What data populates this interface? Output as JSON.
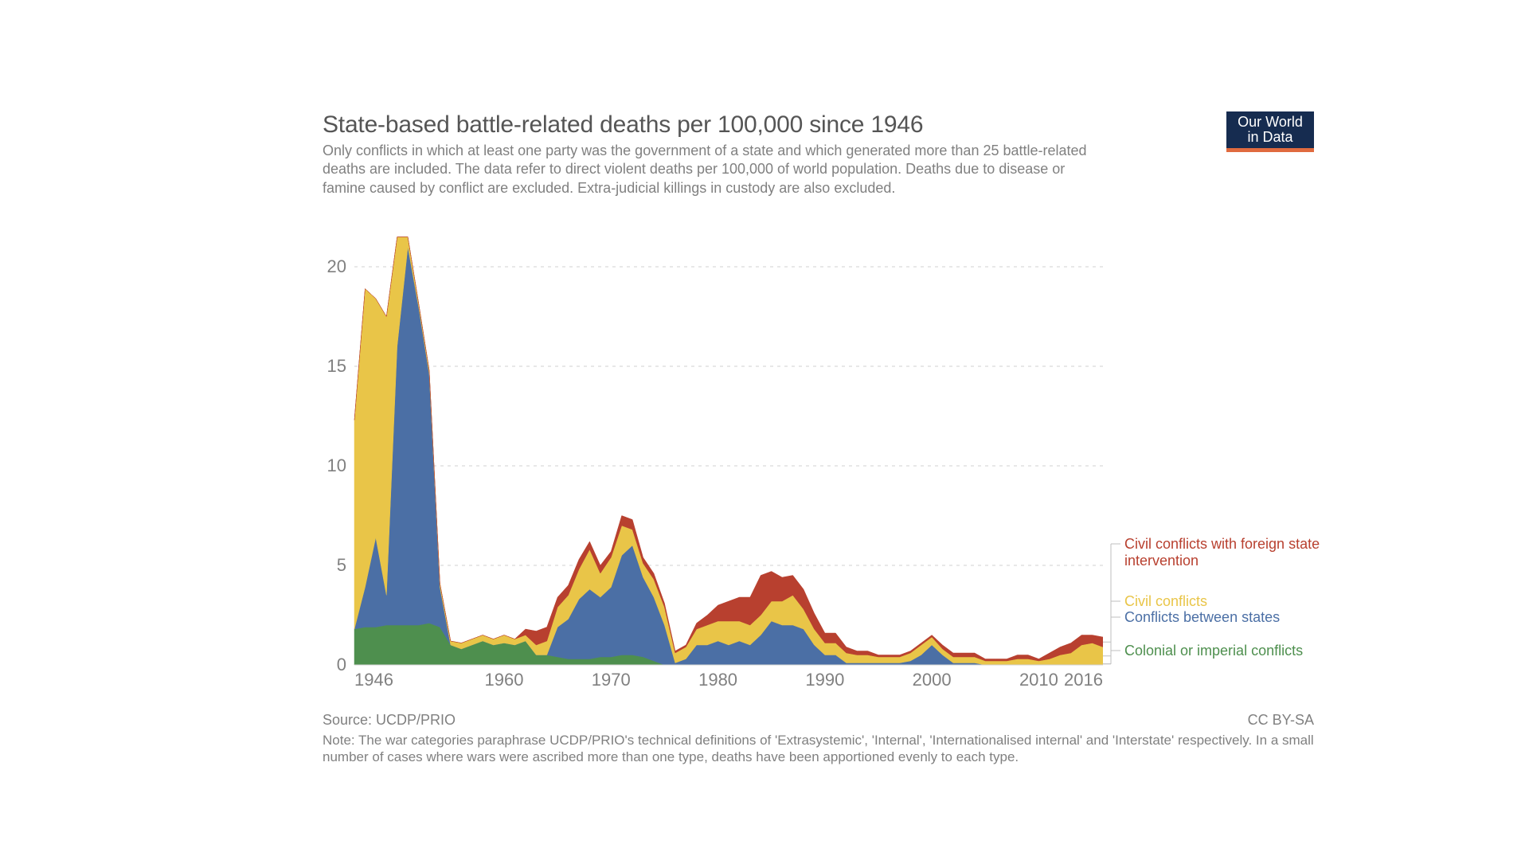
{
  "header": {
    "title": "State-based battle-related deaths per 100,000 since 1946",
    "subtitle": "Only conflicts in which at least one party was the government of a state and which generated more than 25 battle-related deaths are included. The data refer to direct violent deaths per 100,000 of world population. Deaths due to disease or famine caused by conflict are excluded. Extra-judicial killings in custody are also excluded."
  },
  "logo": {
    "line1": "Our World",
    "line2": "in Data"
  },
  "footer": {
    "source": "Source: UCDP/PRIO",
    "license": "CC BY-SA",
    "note": "Note: The war categories paraphrase UCDP/PRIO's technical definitions of 'Extrasystemic', 'Internal', 'Internationalised internal' and 'Interstate' respectively. In a small number of cases where wars were ascribed more than one type, deaths have been apportioned evenly to each type."
  },
  "chart": {
    "type": "stacked-area",
    "background_color": "#ffffff",
    "grid_color": "#d0d0d0",
    "axis_label_color": "#808080",
    "axis_fontsize": 22,
    "xlim": [
      1946,
      2016
    ],
    "ylim": [
      0,
      22
    ],
    "yticks": [
      0,
      5,
      10,
      15,
      20
    ],
    "xticks": [
      1946,
      1960,
      1970,
      1980,
      1990,
      2000,
      2010,
      2016
    ],
    "years": [
      1946,
      1947,
      1948,
      1949,
      1950,
      1951,
      1952,
      1953,
      1954,
      1955,
      1956,
      1957,
      1958,
      1959,
      1960,
      1961,
      1962,
      1963,
      1964,
      1965,
      1966,
      1967,
      1968,
      1969,
      1970,
      1971,
      1972,
      1973,
      1974,
      1975,
      1976,
      1977,
      1978,
      1979,
      1980,
      1981,
      1982,
      1983,
      1984,
      1985,
      1986,
      1987,
      1988,
      1989,
      1990,
      1991,
      1992,
      1993,
      1994,
      1995,
      1996,
      1997,
      1998,
      1999,
      2000,
      2001,
      2002,
      2003,
      2004,
      2005,
      2006,
      2007,
      2008,
      2009,
      2010,
      2011,
      2012,
      2013,
      2014,
      2015,
      2016
    ],
    "series": [
      {
        "key": "colonial",
        "label": "Colonial or imperial conflicts",
        "color": "#4e8f4e",
        "values": [
          1.8,
          1.9,
          1.9,
          2.0,
          2.0,
          2.0,
          2.0,
          2.1,
          1.9,
          1.0,
          0.8,
          1.0,
          1.2,
          1.0,
          1.1,
          1.0,
          1.2,
          0.5,
          0.5,
          0.4,
          0.3,
          0.3,
          0.3,
          0.4,
          0.4,
          0.5,
          0.5,
          0.4,
          0.2,
          0.0,
          0.0,
          0.0,
          0.0,
          0.0,
          0.0,
          0.0,
          0.0,
          0.0,
          0.0,
          0.0,
          0.0,
          0.0,
          0.0,
          0.0,
          0.0,
          0.0,
          0.0,
          0.0,
          0.0,
          0.0,
          0.0,
          0.0,
          0.0,
          0.0,
          0.0,
          0.0,
          0.0,
          0.0,
          0.0,
          0.0,
          0.0,
          0.0,
          0.0,
          0.0,
          0.0,
          0.0,
          0.0,
          0.0,
          0.0,
          0.0,
          0.0
        ]
      },
      {
        "key": "interstate",
        "label": "Conflicts between states",
        "color": "#4b6fa5",
        "values": [
          0.0,
          2.0,
          4.5,
          1.5,
          14.0,
          19.0,
          16.0,
          12.5,
          2.0,
          0.0,
          0.0,
          0.0,
          0.0,
          0.0,
          0.0,
          0.0,
          0.0,
          0.0,
          0.0,
          1.5,
          2.0,
          3.0,
          3.5,
          3.0,
          3.5,
          5.0,
          5.5,
          4.0,
          3.2,
          2.0,
          0.1,
          0.3,
          1.0,
          1.0,
          1.2,
          1.0,
          1.2,
          1.0,
          1.5,
          2.2,
          2.0,
          2.0,
          1.8,
          1.0,
          0.5,
          0.5,
          0.1,
          0.1,
          0.1,
          0.1,
          0.1,
          0.1,
          0.2,
          0.5,
          1.0,
          0.5,
          0.1,
          0.1,
          0.1,
          0.0,
          0.0,
          0.0,
          0.0,
          0.0,
          0.0,
          0.0,
          0.0,
          0.0,
          0.0,
          0.0,
          0.0
        ]
      },
      {
        "key": "civil",
        "label": "Civil conflicts",
        "color": "#e9c548",
        "values": [
          10.5,
          15.0,
          12.0,
          14.0,
          5.5,
          0.5,
          0.2,
          0.2,
          0.2,
          0.2,
          0.3,
          0.3,
          0.3,
          0.3,
          0.4,
          0.3,
          0.3,
          0.5,
          0.7,
          1.0,
          1.2,
          1.5,
          2.0,
          1.2,
          1.5,
          1.5,
          0.8,
          0.7,
          0.9,
          0.9,
          0.5,
          0.6,
          0.8,
          1.0,
          1.0,
          1.2,
          1.0,
          1.0,
          1.0,
          1.0,
          1.2,
          1.5,
          1.0,
          0.8,
          0.6,
          0.6,
          0.5,
          0.4,
          0.4,
          0.3,
          0.3,
          0.3,
          0.4,
          0.5,
          0.4,
          0.3,
          0.3,
          0.3,
          0.3,
          0.2,
          0.2,
          0.2,
          0.3,
          0.3,
          0.2,
          0.3,
          0.5,
          0.6,
          1.0,
          1.1,
          0.9
        ]
      },
      {
        "key": "civil_foreign",
        "label": "Civil conflicts with foreign state intervention",
        "color": "#b8402f",
        "values": [
          0.0,
          0.0,
          0.0,
          0.0,
          0.0,
          0.0,
          0.0,
          0.0,
          0.0,
          0.0,
          0.0,
          0.0,
          0.0,
          0.0,
          0.0,
          0.0,
          0.3,
          0.7,
          0.7,
          0.5,
          0.5,
          0.5,
          0.4,
          0.4,
          0.3,
          0.5,
          0.5,
          0.3,
          0.3,
          0.2,
          0.1,
          0.1,
          0.3,
          0.5,
          0.8,
          1.0,
          1.2,
          1.4,
          2.0,
          1.5,
          1.2,
          1.0,
          1.0,
          0.8,
          0.5,
          0.5,
          0.3,
          0.2,
          0.2,
          0.1,
          0.1,
          0.1,
          0.1,
          0.1,
          0.1,
          0.2,
          0.2,
          0.2,
          0.2,
          0.1,
          0.1,
          0.1,
          0.2,
          0.2,
          0.1,
          0.3,
          0.4,
          0.5,
          0.5,
          0.4,
          0.5
        ]
      }
    ],
    "legend": {
      "connector_color": "#bfbfbf",
      "items": [
        {
          "key": "civil_foreign",
          "color": "#b8402f",
          "label": "Civil conflicts with foreign state intervention"
        },
        {
          "key": "civil",
          "color": "#e9c548",
          "label": "Civil conflicts"
        },
        {
          "key": "interstate",
          "color": "#4b6fa5",
          "label": "Conflicts between states"
        },
        {
          "key": "colonial",
          "color": "#4e8f4e",
          "label": "Colonial or imperial conflicts"
        }
      ]
    }
  }
}
